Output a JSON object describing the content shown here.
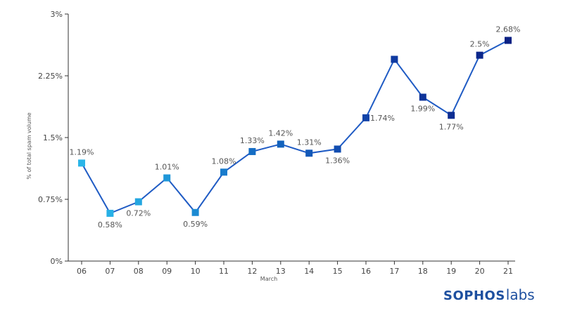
{
  "chart_data": {
    "type": "line",
    "x": [
      "06",
      "07",
      "08",
      "09",
      "10",
      "11",
      "12",
      "13",
      "14",
      "15",
      "16",
      "17",
      "18",
      "19",
      "20",
      "21"
    ],
    "values": [
      1.19,
      0.58,
      0.72,
      1.01,
      0.59,
      1.08,
      1.33,
      1.42,
      1.31,
      1.36,
      1.74,
      2.45,
      1.99,
      1.77,
      2.5,
      2.68
    ],
    "data_labels": [
      "1.19%",
      "0.58%",
      "0.72%",
      "1.01%",
      "0.59%",
      "1.08%",
      "1.33%",
      "1.42%",
      "1.31%",
      "1.36%",
      "1.74%",
      "",
      "1.99%",
      "1.77%",
      "2.5%",
      "2.68%"
    ],
    "label_positions": [
      "above",
      "below",
      "below",
      "above",
      "below",
      "above",
      "above",
      "above",
      "above",
      "below",
      "right",
      "none",
      "below",
      "below",
      "above",
      "above"
    ],
    "ylabel": "% of total spam volume",
    "xlabel": "March",
    "ylim": [
      0,
      3
    ],
    "yticks": [
      0,
      0.75,
      1.5,
      2.25,
      3
    ],
    "ytick_labels": [
      "0%",
      "0.75%",
      "1.5%",
      "2.25%",
      "3%"
    ],
    "grid": false,
    "line_color": "#1f5bc4",
    "marker_colors": [
      "#2bb5e8",
      "#27b0e6",
      "#24a6e0",
      "#1f97d9",
      "#1b8ad3",
      "#187bcc",
      "#156dc4",
      "#1262bd",
      "#1258b8",
      "#114db0",
      "#1043a8",
      "#0f3aa1",
      "#0e3399",
      "#0d2d92",
      "#0c278b",
      "#0b2184"
    ]
  },
  "logo": {
    "brand": "SOPHOS",
    "suffix": "labs"
  }
}
